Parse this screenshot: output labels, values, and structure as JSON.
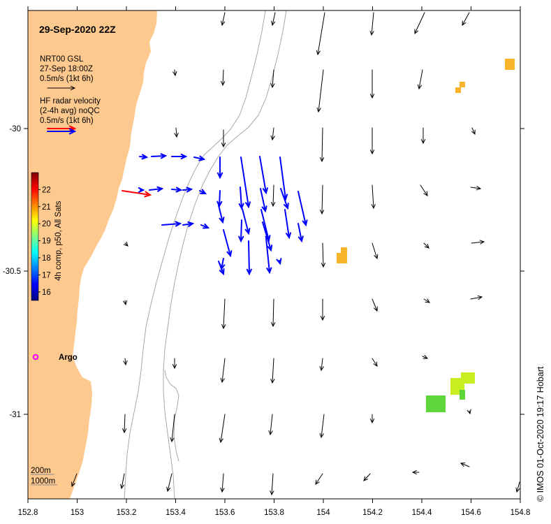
{
  "title": "29-Sep-2020 22Z",
  "legend": {
    "model_line1": "NRT00 GSL",
    "model_line2": "27-Sep 18:00Z",
    "model_line3": "0.5m/s (1kt 6h)",
    "radar_line1": "HF radar velocity",
    "radar_line2": "(2-4h avg) noQC",
    "radar_line3": "0.5m/s (1kt 6h)"
  },
  "colorbar": {
    "label": "4h comp, p50, All Sats",
    "ticks": [
      "22",
      "21",
      "20",
      "19",
      "18",
      "17",
      "16"
    ],
    "min": 15.5,
    "max": 23,
    "colors": [
      "#00007f",
      "#0000ff",
      "#0080ff",
      "#00ffff",
      "#80ff80",
      "#ffff00",
      "#ff8000",
      "#ff0000",
      "#7f0000"
    ]
  },
  "argo_label": "Argo",
  "depth_labels": [
    "200m",
    "1000m"
  ],
  "credit": "© IMOS 01-Oct-2020 19:17 Hobart",
  "axes": {
    "xticks": [
      "152.8",
      "153",
      "153.2",
      "153.4",
      "153.6",
      "153.8",
      "154",
      "154.2",
      "154.4",
      "154.6",
      "154.8"
    ],
    "yticks": [
      "-30",
      "-30.5",
      "-31"
    ]
  },
  "colors": {
    "land": "#fdc98f",
    "model_arrow": "#000000",
    "radar_arrow": "#0000ff",
    "wind_arrow": "#ff0000",
    "contour": "#a8a8a8",
    "argo": "#ff00ff",
    "sst_orange": "#f6b52a",
    "sst_yellowgreen": "#c7ee1f",
    "sst_green": "#5ed63a"
  }
}
